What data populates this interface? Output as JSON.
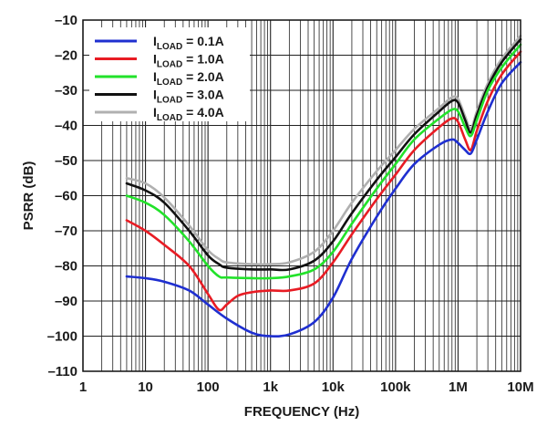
{
  "chart_data": {
    "type": "line",
    "title": "",
    "xlabel": "FREQUENCY (Hz)",
    "ylabel": "PSRR (dB)",
    "xscale": "log",
    "xlim": [
      1,
      10000000
    ],
    "ylim": [
      -110,
      -10
    ],
    "grid": true,
    "legend_position": "top-left",
    "x_ticks": [
      {
        "value": 1,
        "label": "1"
      },
      {
        "value": 10,
        "label": "10"
      },
      {
        "value": 100,
        "label": "100"
      },
      {
        "value": 1000,
        "label": "1k"
      },
      {
        "value": 10000,
        "label": "10k"
      },
      {
        "value": 100000,
        "label": "100k"
      },
      {
        "value": 1000000,
        "label": "1M"
      },
      {
        "value": 10000000,
        "label": "10M"
      }
    ],
    "y_ticks": [
      {
        "value": -10,
        "label": "–10"
      },
      {
        "value": -20,
        "label": "–20"
      },
      {
        "value": -30,
        "label": "–30"
      },
      {
        "value": -40,
        "label": "–40"
      },
      {
        "value": -50,
        "label": "–50"
      },
      {
        "value": -60,
        "label": "–60"
      },
      {
        "value": -70,
        "label": "–70"
      },
      {
        "value": -80,
        "label": "–80"
      },
      {
        "value": -90,
        "label": "–90"
      },
      {
        "value": -100,
        "label": "–100"
      },
      {
        "value": -110,
        "label": "–110"
      }
    ],
    "series": [
      {
        "name": "I_LOAD = 0.1A",
        "prefix": "I",
        "sub": "LOAD",
        "suffix": " = 0.1A",
        "color": "#1f2fd0",
        "points": [
          [
            5,
            -83
          ],
          [
            10,
            -83.5
          ],
          [
            20,
            -84.5
          ],
          [
            50,
            -87
          ],
          [
            100,
            -91
          ],
          [
            200,
            -95
          ],
          [
            500,
            -99
          ],
          [
            1000,
            -100
          ],
          [
            2000,
            -99.5
          ],
          [
            5000,
            -96
          ],
          [
            10000,
            -89
          ],
          [
            20000,
            -78
          ],
          [
            50000,
            -66
          ],
          [
            100000,
            -58
          ],
          [
            200000,
            -51
          ],
          [
            500000,
            -45.5
          ],
          [
            800000,
            -44
          ],
          [
            1000000,
            -45
          ],
          [
            1300000,
            -47
          ],
          [
            1600000,
            -48
          ],
          [
            2000000,
            -44
          ],
          [
            3000000,
            -36
          ],
          [
            5000000,
            -28
          ],
          [
            10000000,
            -22
          ]
        ]
      },
      {
        "name": "I_LOAD = 1.0A",
        "prefix": "I",
        "sub": "LOAD",
        "suffix": " = 1.0A",
        "color": "#e81c24",
        "points": [
          [
            5,
            -67
          ],
          [
            10,
            -70
          ],
          [
            20,
            -74
          ],
          [
            50,
            -80
          ],
          [
            100,
            -88
          ],
          [
            150,
            -92.5
          ],
          [
            200,
            -91
          ],
          [
            300,
            -88.5
          ],
          [
            500,
            -87.5
          ],
          [
            1000,
            -87
          ],
          [
            2000,
            -87
          ],
          [
            5000,
            -85
          ],
          [
            10000,
            -79
          ],
          [
            20000,
            -71
          ],
          [
            50000,
            -61
          ],
          [
            100000,
            -54
          ],
          [
            200000,
            -47
          ],
          [
            500000,
            -40.5
          ],
          [
            800000,
            -38
          ],
          [
            1000000,
            -39
          ],
          [
            1300000,
            -44
          ],
          [
            1600000,
            -47
          ],
          [
            2000000,
            -41.5
          ],
          [
            3000000,
            -33
          ],
          [
            5000000,
            -25.5
          ],
          [
            10000000,
            -19
          ]
        ]
      },
      {
        "name": "I_LOAD = 2.0A",
        "prefix": "I",
        "sub": "LOAD",
        "suffix": " = 2.0A",
        "color": "#22e22a",
        "points": [
          [
            5,
            -60
          ],
          [
            10,
            -62
          ],
          [
            20,
            -65.5
          ],
          [
            50,
            -73
          ],
          [
            100,
            -80
          ],
          [
            150,
            -83
          ],
          [
            200,
            -83.3
          ],
          [
            500,
            -83.5
          ],
          [
            1000,
            -83.5
          ],
          [
            2000,
            -83
          ],
          [
            5000,
            -81
          ],
          [
            10000,
            -76
          ],
          [
            20000,
            -68
          ],
          [
            50000,
            -58
          ],
          [
            100000,
            -51
          ],
          [
            200000,
            -44
          ],
          [
            500000,
            -38
          ],
          [
            800000,
            -35.5
          ],
          [
            1000000,
            -36
          ],
          [
            1300000,
            -40.5
          ],
          [
            1600000,
            -43
          ],
          [
            2000000,
            -38.5
          ],
          [
            3000000,
            -30
          ],
          [
            5000000,
            -23.5
          ],
          [
            10000000,
            -17
          ]
        ]
      },
      {
        "name": "I_LOAD = 3.0A",
        "prefix": "I",
        "sub": "LOAD",
        "suffix": " = 3.0A",
        "color": "#111111",
        "points": [
          [
            5,
            -56.5
          ],
          [
            10,
            -58.5
          ],
          [
            20,
            -62
          ],
          [
            50,
            -70
          ],
          [
            100,
            -77
          ],
          [
            150,
            -79.5
          ],
          [
            200,
            -80.5
          ],
          [
            500,
            -81
          ],
          [
            1000,
            -81
          ],
          [
            2000,
            -81
          ],
          [
            5000,
            -78.5
          ],
          [
            10000,
            -73
          ],
          [
            20000,
            -65
          ],
          [
            50000,
            -55.5
          ],
          [
            100000,
            -49
          ],
          [
            200000,
            -42.5
          ],
          [
            500000,
            -36
          ],
          [
            800000,
            -33
          ],
          [
            1000000,
            -33.5
          ],
          [
            1300000,
            -38.5
          ],
          [
            1600000,
            -42
          ],
          [
            2000000,
            -37
          ],
          [
            3000000,
            -29
          ],
          [
            5000000,
            -22
          ],
          [
            10000000,
            -15.5
          ]
        ]
      },
      {
        "name": "I_LOAD = 4.0A",
        "prefix": "I",
        "sub": "LOAD",
        "suffix": " = 4.0A",
        "color": "#b0b0b0",
        "points": [
          [
            5,
            -55
          ],
          [
            10,
            -56.5
          ],
          [
            20,
            -60.5
          ],
          [
            50,
            -68.5
          ],
          [
            100,
            -75.5
          ],
          [
            150,
            -78
          ],
          [
            200,
            -79
          ],
          [
            500,
            -79.5
          ],
          [
            1000,
            -79.5
          ],
          [
            2000,
            -79
          ],
          [
            5000,
            -76
          ],
          [
            10000,
            -70
          ],
          [
            20000,
            -62
          ],
          [
            50000,
            -53
          ],
          [
            100000,
            -47
          ],
          [
            200000,
            -41
          ],
          [
            500000,
            -35
          ],
          [
            800000,
            -32
          ],
          [
            1000000,
            -32.5
          ],
          [
            1300000,
            -37.5
          ],
          [
            1600000,
            -41
          ],
          [
            2000000,
            -36
          ],
          [
            3000000,
            -28
          ],
          [
            5000000,
            -21
          ],
          [
            10000000,
            -14.5
          ]
        ]
      }
    ]
  }
}
